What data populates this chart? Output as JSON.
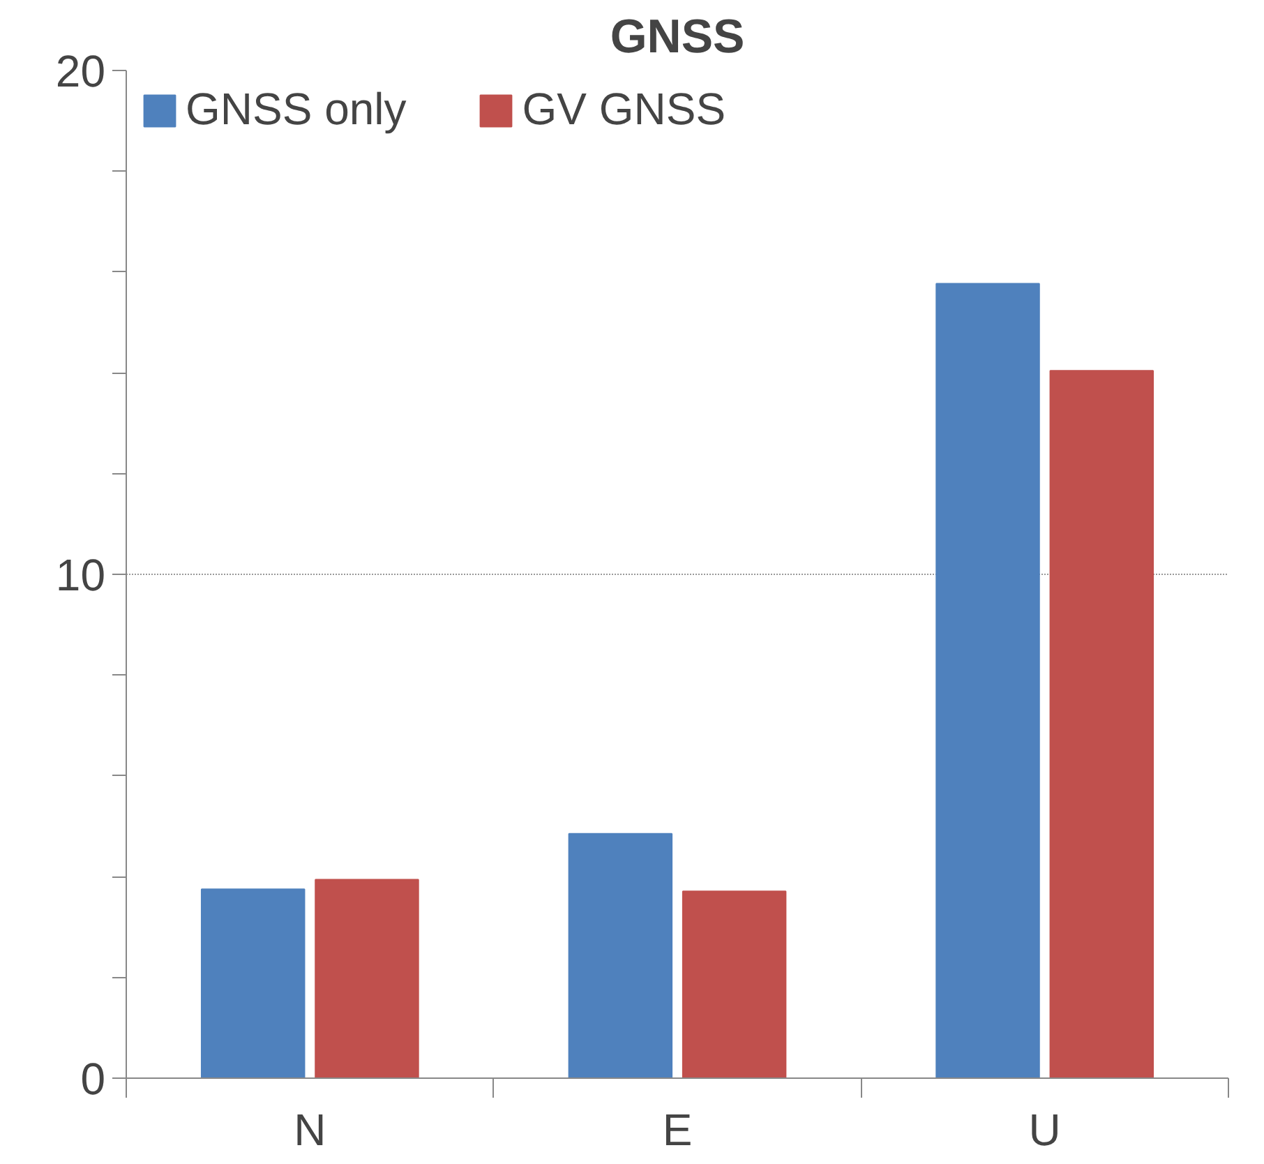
{
  "chart_data": {
    "type": "bar",
    "title": "GNSS",
    "categories": [
      "N",
      "E",
      "U"
    ],
    "series": [
      {
        "name": "GNSS only",
        "color": "#4f81bd",
        "values": [
          3.75,
          4.85,
          15.77
        ]
      },
      {
        "name": "GV GNSS",
        "color": "#c0504d",
        "values": [
          3.94,
          3.71,
          14.04
        ]
      }
    ],
    "ylim": [
      0,
      20
    ],
    "yticks": [
      0,
      {
        "value": 2,
        "label": null
      },
      {
        "value": 4,
        "label": null
      },
      {
        "value": 6,
        "label": null
      },
      {
        "value": 8,
        "label": null
      },
      10,
      {
        "value": 12,
        "label": null
      },
      {
        "value": 14,
        "label": null
      },
      {
        "value": 16,
        "label": null
      },
      {
        "value": 18,
        "label": null
      },
      20
    ],
    "grid": "y",
    "legend": "top left"
  }
}
